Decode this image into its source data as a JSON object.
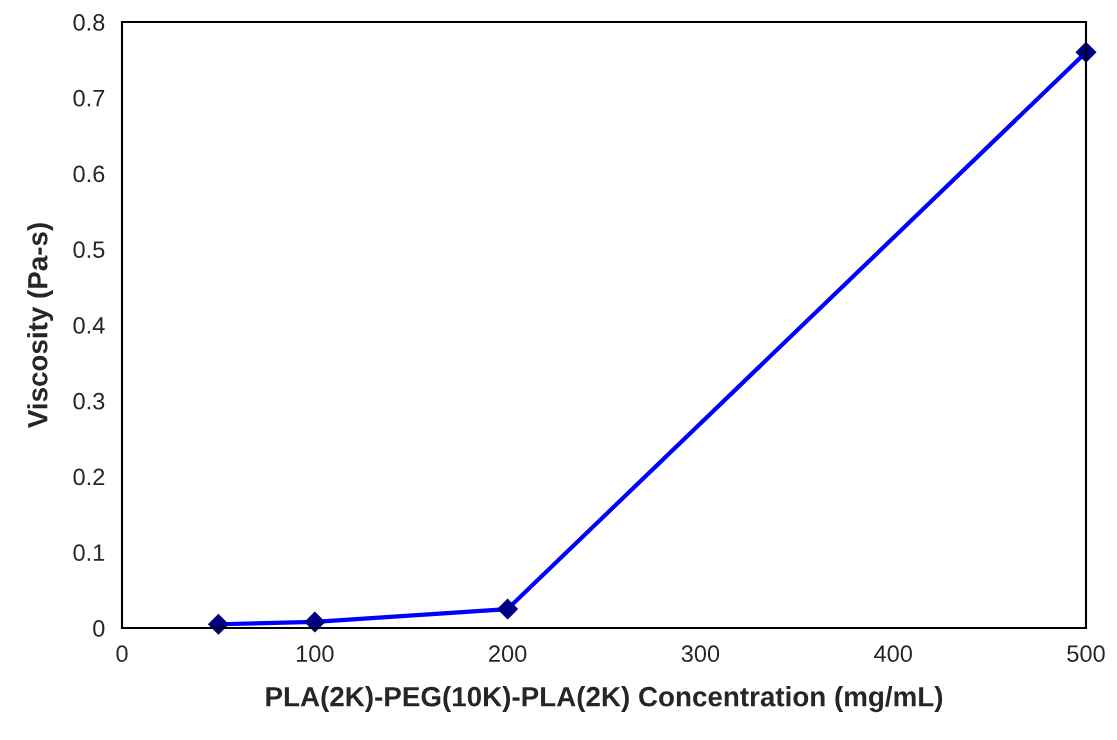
{
  "chart_data": {
    "type": "line",
    "xlabel": "PLA(2K)-PEG(10K)-PLA(2K) Concentration (mg/mL)",
    "ylabel": "Viscosity (Pa-s)",
    "x": [
      50,
      100,
      200,
      500
    ],
    "series": [
      {
        "color": "#0000ff",
        "values": [
          0.005,
          0.008,
          0.025,
          0.76
        ]
      }
    ],
    "marker": "diamond",
    "line_style": "solid",
    "grid": false,
    "xlim": [
      0,
      500
    ],
    "xticks": [
      0,
      100,
      200,
      300,
      400,
      500
    ],
    "ylim": [
      0,
      0.8
    ],
    "yticks": [
      0,
      0.1,
      0.2,
      0.3,
      0.4,
      0.5,
      0.6,
      0.7,
      0.8
    ]
  }
}
